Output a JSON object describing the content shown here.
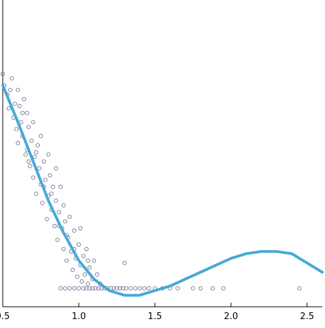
{
  "chart_data": {
    "type": "scatter",
    "title": "",
    "xlabel": "",
    "ylabel": "",
    "xlim": [
      0.5,
      2.6
    ],
    "ylim": [
      -0.08,
      1.25
    ],
    "x_ticks": [
      {
        "value": 0.5,
        "label": "0.5"
      },
      {
        "value": 1.0,
        "label": "1.0"
      },
      {
        "value": 1.5,
        "label": "1.5"
      },
      {
        "value": 2.0,
        "label": "2.0"
      },
      {
        "value": 2.5,
        "label": "2.5"
      }
    ],
    "y_ticks": [],
    "grid": false,
    "legend": "none",
    "series": [
      {
        "kind": "scatter",
        "points": [
          [
            0.5,
            0.93
          ],
          [
            0.51,
            0.88
          ],
          [
            0.53,
            0.84
          ],
          [
            0.54,
            0.78
          ],
          [
            0.55,
            0.86
          ],
          [
            0.56,
            0.91
          ],
          [
            0.57,
            0.74
          ],
          [
            0.58,
            0.8
          ],
          [
            0.59,
            0.69
          ],
          [
            0.6,
            0.86
          ],
          [
            0.6,
            0.63
          ],
          [
            0.61,
            0.79
          ],
          [
            0.62,
            0.72
          ],
          [
            0.63,
            0.66
          ],
          [
            0.64,
            0.82
          ],
          [
            0.65,
            0.58
          ],
          [
            0.66,
            0.76
          ],
          [
            0.66,
            0.6
          ],
          [
            0.67,
            0.7
          ],
          [
            0.68,
            0.53
          ],
          [
            0.69,
            0.64
          ],
          [
            0.7,
            0.72
          ],
          [
            0.7,
            0.48
          ],
          [
            0.71,
            0.57
          ],
          [
            0.72,
            0.41
          ],
          [
            0.73,
            0.62
          ],
          [
            0.74,
            0.52
          ],
          [
            0.75,
            0.66
          ],
          [
            0.75,
            0.45
          ],
          [
            0.76,
            0.37
          ],
          [
            0.77,
            0.55
          ],
          [
            0.78,
            0.47
          ],
          [
            0.79,
            0.3
          ],
          [
            0.8,
            0.58
          ],
          [
            0.8,
            0.4
          ],
          [
            0.81,
            0.49
          ],
          [
            0.82,
            0.34
          ],
          [
            0.83,
            0.44
          ],
          [
            0.84,
            0.27
          ],
          [
            0.85,
            0.52
          ],
          [
            0.85,
            0.38
          ],
          [
            0.86,
            0.21
          ],
          [
            0.87,
            0.33
          ],
          [
            0.88,
            0.44
          ],
          [
            0.89,
            0.26
          ],
          [
            0.9,
            0.17
          ],
          [
            0.9,
            0.36
          ],
          [
            0.91,
            0.29
          ],
          [
            0.92,
            0.12
          ],
          [
            0.93,
            0.22
          ],
          [
            0.94,
            0.31
          ],
          [
            0.95,
            0.16
          ],
          [
            0.96,
            0.08
          ],
          [
            0.97,
            0.25
          ],
          [
            0.98,
            0.13
          ],
          [
            0.99,
            0.05
          ],
          [
            1.0,
            0.19
          ],
          [
            1.01,
            0.1
          ],
          [
            1.02,
            0.03
          ],
          [
            1.03,
            0.14
          ],
          [
            1.04,
            0.06
          ],
          [
            1.05,
            0.17
          ],
          [
            1.06,
            0.02
          ],
          [
            1.07,
            0.09
          ],
          [
            1.09,
            0.04
          ],
          [
            1.1,
            0.12
          ],
          [
            1.12,
            0.06
          ],
          [
            1.14,
            0.02
          ],
          [
            0.63,
            0.76
          ],
          [
            0.67,
            0.55
          ],
          [
            0.72,
            0.59
          ],
          [
            0.77,
            0.44
          ],
          [
            0.82,
            0.41
          ],
          [
            0.87,
            0.27
          ],
          [
            0.92,
            0.23
          ],
          [
            0.97,
            0.17
          ],
          [
            1.01,
            0.26
          ],
          [
            1.06,
            0.12
          ],
          [
            0.88,
            0.0
          ],
          [
            0.91,
            0.0
          ],
          [
            0.94,
            0.0
          ],
          [
            0.97,
            0.0
          ],
          [
            1.0,
            0.0
          ],
          [
            1.03,
            0.0
          ],
          [
            1.05,
            0.0
          ],
          [
            1.07,
            0.0
          ],
          [
            1.09,
            0.0
          ],
          [
            1.11,
            0.0
          ],
          [
            1.13,
            0.0
          ],
          [
            1.15,
            0.0
          ],
          [
            1.17,
            0.0
          ],
          [
            1.19,
            0.0
          ],
          [
            1.21,
            0.0
          ],
          [
            1.23,
            0.0
          ],
          [
            1.25,
            0.0
          ],
          [
            1.27,
            0.0
          ],
          [
            1.29,
            0.0
          ],
          [
            1.31,
            0.0
          ],
          [
            1.34,
            0.0
          ],
          [
            1.37,
            0.0
          ],
          [
            1.4,
            0.0
          ],
          [
            1.43,
            0.0
          ],
          [
            1.46,
            0.0
          ],
          [
            1.5,
            0.0
          ],
          [
            1.55,
            0.0
          ],
          [
            1.6,
            0.0
          ],
          [
            1.65,
            0.0
          ],
          [
            1.75,
            0.0
          ],
          [
            1.8,
            0.0
          ],
          [
            1.88,
            0.0
          ],
          [
            1.95,
            0.0
          ],
          [
            2.45,
            0.0
          ],
          [
            1.3,
            0.11
          ]
        ]
      },
      {
        "kind": "line",
        "x": [
          0.5,
          0.6,
          0.7,
          0.8,
          0.9,
          1.0,
          1.1,
          1.2,
          1.3,
          1.4,
          1.5,
          1.6,
          1.7,
          1.8,
          1.9,
          2.0,
          2.1,
          2.2,
          2.3,
          2.4,
          2.5,
          2.6
        ],
        "y": [
          0.88,
          0.72,
          0.55,
          0.38,
          0.24,
          0.12,
          0.04,
          -0.01,
          -0.03,
          -0.03,
          -0.01,
          0.01,
          0.04,
          0.07,
          0.1,
          0.13,
          0.15,
          0.16,
          0.16,
          0.15,
          0.11,
          0.07
        ]
      }
    ]
  }
}
